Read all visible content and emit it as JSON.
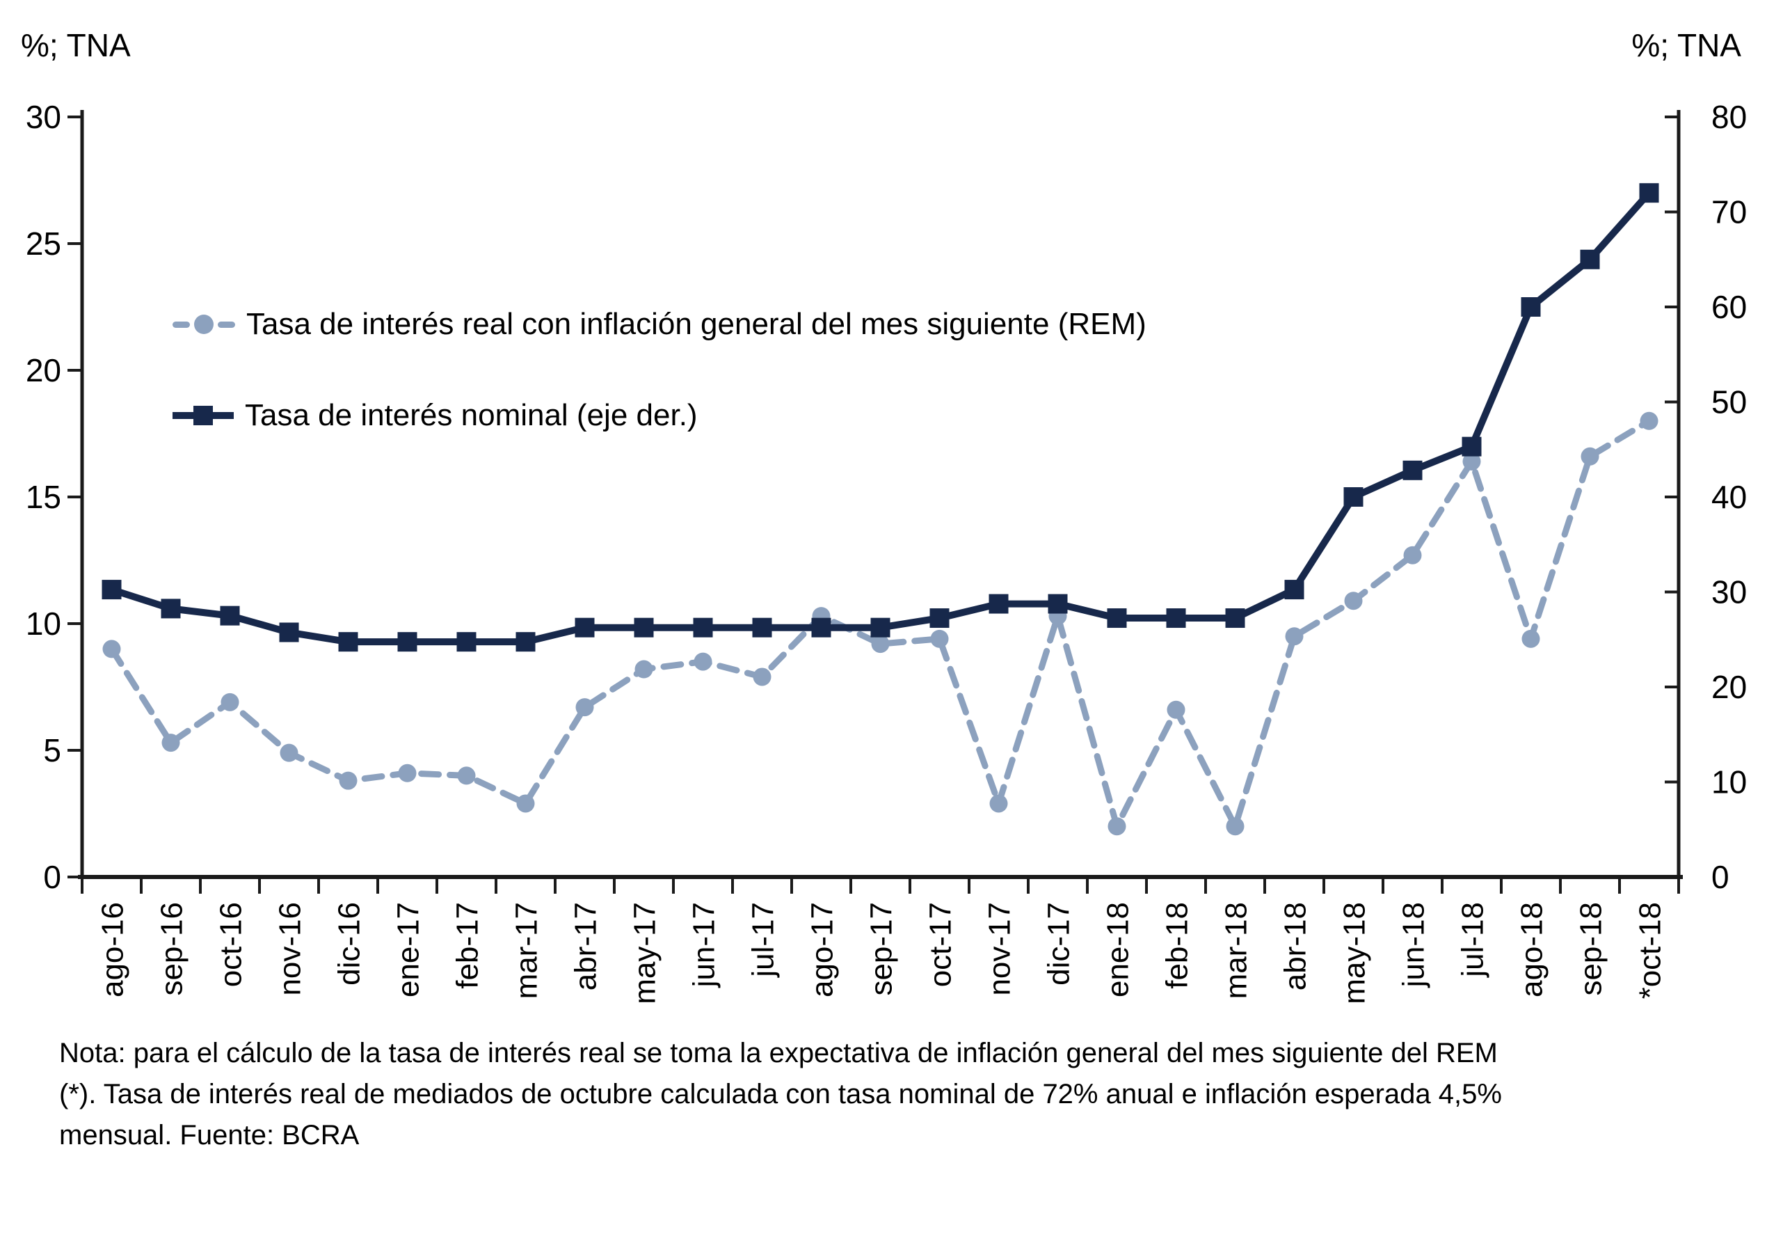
{
  "chart_data": {
    "type": "line",
    "categories": [
      "ago-16",
      "sep-16",
      "oct-16",
      "nov-16",
      "dic-16",
      "ene-17",
      "feb-17",
      "mar-17",
      "abr-17",
      "may-17",
      "jun-17",
      "jul-17",
      "ago-17",
      "sep-17",
      "oct-17",
      "nov-17",
      "dic-17",
      "ene-18",
      "feb-18",
      "mar-18",
      "abr-18",
      "may-18",
      "jun-18",
      "jul-18",
      "ago-18",
      "sep-18",
      "*oct-18"
    ],
    "series": [
      {
        "name": "Tasa de interés real con inflación general del mes siguiente (REM)",
        "axis": "left",
        "style": "dashed",
        "marker": "circle",
        "color": "#8ca1be",
        "values": [
          9.0,
          5.3,
          6.9,
          4.9,
          3.8,
          4.1,
          4.0,
          2.9,
          6.7,
          8.2,
          8.5,
          7.9,
          10.3,
          9.2,
          9.4,
          2.9,
          10.3,
          2.0,
          6.6,
          2.0,
          9.5,
          10.9,
          12.7,
          16.4,
          9.4,
          16.6,
          18.0
        ]
      },
      {
        "name": "Tasa de interés nominal (eje der.)",
        "axis": "right",
        "style": "solid",
        "marker": "square",
        "color": "#17284b",
        "values": [
          30.25,
          28.25,
          27.5,
          25.75,
          24.75,
          24.75,
          24.75,
          24.75,
          26.25,
          26.25,
          26.25,
          26.25,
          26.25,
          26.25,
          27.25,
          28.75,
          28.75,
          27.25,
          27.25,
          27.25,
          30.25,
          40.0,
          42.8,
          45.3,
          60.0,
          65.0,
          72.0
        ]
      }
    ],
    "left_axis": {
      "label": "%; TNA",
      "min": 0,
      "max": 30,
      "tick_step": 5
    },
    "right_axis": {
      "label": "%; TNA",
      "min": 0,
      "max": 80,
      "tick_step": 10
    },
    "grid": false,
    "legend_position": "inside-top-left"
  },
  "note": {
    "lines": [
      "Nota: para el cálculo de la tasa de interés real se toma la expectativa de inflación general del mes siguiente del REM",
      "(*). Tasa de interés  real de mediados de octubre calculada con  tasa nominal de 72% anual e inflación esperada 4,5%",
      "mensual. Fuente: BCRA"
    ]
  }
}
